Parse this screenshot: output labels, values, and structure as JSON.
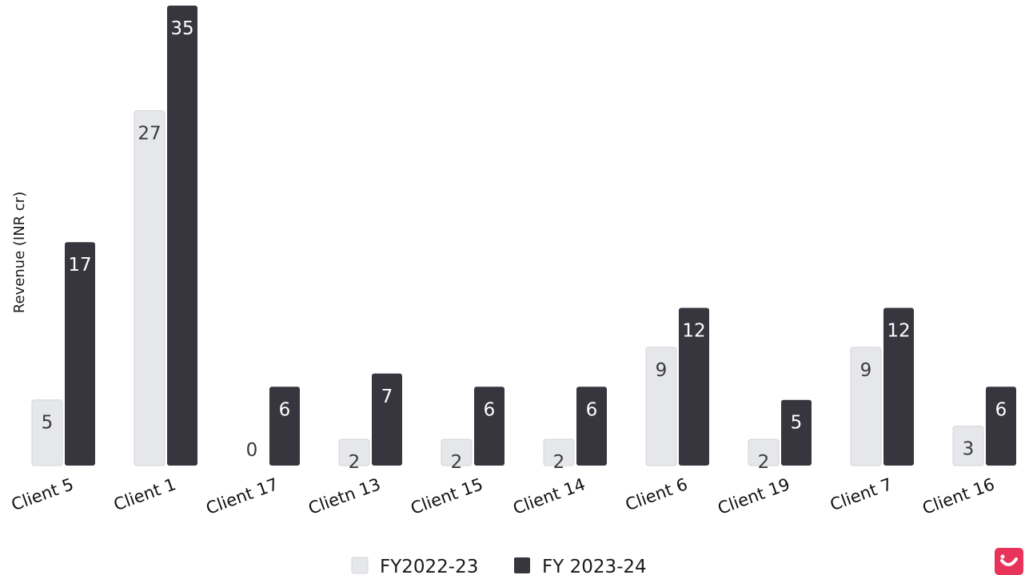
{
  "chart_data": {
    "type": "bar",
    "categories": [
      "Client 5",
      "Client 1",
      "Client 17",
      "Clietn 13",
      "Client 15",
      "Client 14",
      "Client 6",
      "Client 19",
      "Client 7",
      "Client 16"
    ],
    "series": [
      {
        "name": "FY2022-23",
        "values": [
          5,
          27,
          0,
          2,
          2,
          2,
          9,
          2,
          9,
          3
        ],
        "color": "#e6e7eb"
      },
      {
        "name": "FY 2023-24",
        "values": [
          17,
          35,
          6,
          7,
          6,
          6,
          12,
          5,
          12,
          6
        ],
        "color": "#37363f"
      }
    ],
    "ylabel": "Revenue (INR cr)",
    "xlabel": "",
    "ylim": [
      0,
      35
    ],
    "grid": false,
    "legend": "bottom-center"
  },
  "colors": {
    "light_bar": "#e6e7eb",
    "dark_bar": "#37363f",
    "label_on_light": "#3a3a3a",
    "label_on_dark": "#ffffff",
    "logo": "#e8345a"
  },
  "logo": {
    "icon": "brand-logo-icon"
  }
}
